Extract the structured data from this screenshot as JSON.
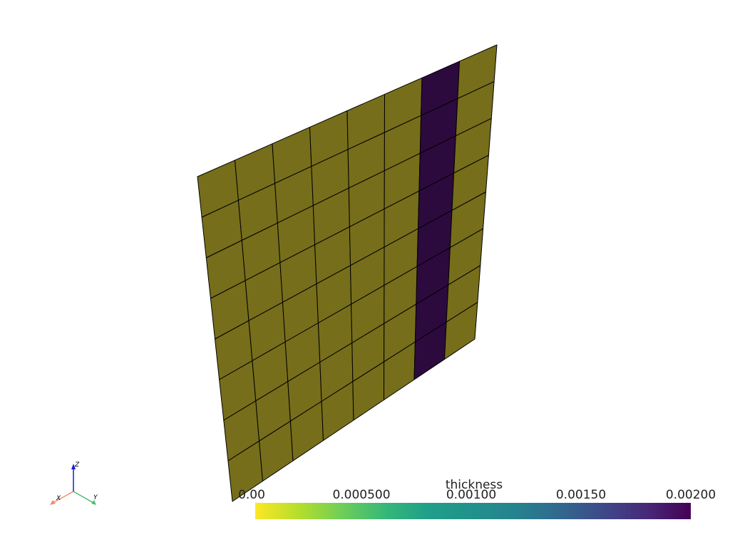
{
  "scalar_bar": {
    "title": "thickness",
    "ticks": [
      "0.00",
      "0.000500",
      "0.00100",
      "0.00150",
      "0.00200"
    ],
    "range": [
      0,
      0.002
    ],
    "colormap": "viridis"
  },
  "mesh": {
    "columns": 8,
    "rows": 8,
    "highlight_column": 7,
    "base_color": "#766e1a",
    "highlight_color": "#2d0a3e",
    "edge_color": "#000000"
  },
  "orientation_axes": {
    "x_label": "X",
    "y_label": "Y",
    "z_label": "Z",
    "x_color": "#f08a6f",
    "y_color": "#4dbf72",
    "z_color": "#1a1ad9"
  }
}
